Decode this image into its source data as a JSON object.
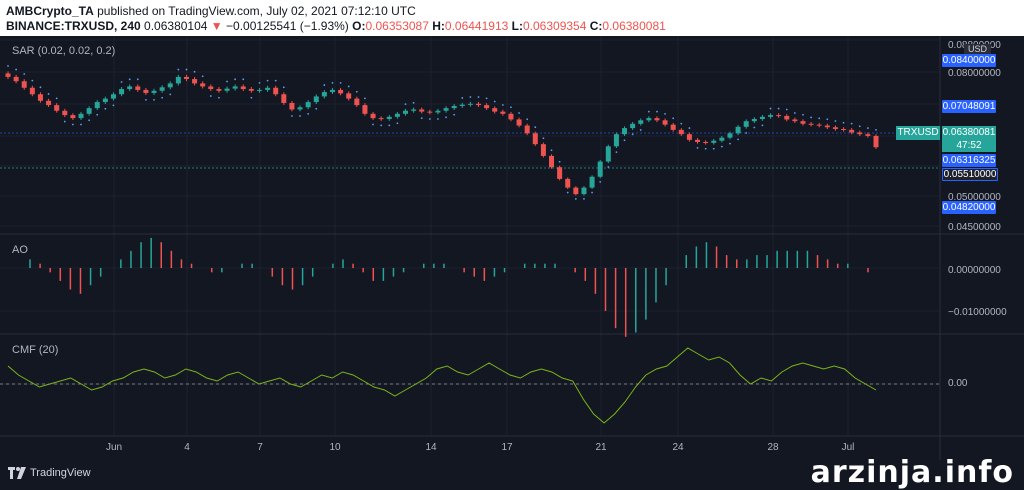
{
  "header": {
    "author": "AMBCrypto_TA",
    "published": "published on TradingView.com, July 02, 2021 07:12:10 UTC",
    "symbol": "BINANCE:TRXUSD, 240",
    "price": "0.06380104",
    "arrow": "▼",
    "change": "−0.00125541 (−1.93%)",
    "o_label": "O:",
    "o_value": "0.06353087",
    "h_label": "H:",
    "h_value": "0.06441913",
    "l_label": "L:",
    "l_value": "0.06309354",
    "c_label": "C:",
    "c_value": "0.06380081"
  },
  "panes": {
    "price_title": "SAR (0.02, 0.02, 0.2)",
    "ao_title": "AO",
    "cmf_title": "CMF (20)"
  },
  "price_axis": {
    "currency": "USD",
    "ticks": [
      "0.08800000",
      "0.08000000",
      "0.05000000",
      "0.04500000"
    ],
    "tags": {
      "t1": "0.08400000",
      "t2": "0.07048091",
      "t3": "0.06316325",
      "t4": "0.05510000",
      "t5": "0.04820000"
    },
    "symbol_tag": "TRXUSD",
    "last_price": "0.06380081",
    "countdown": "47:52"
  },
  "ao_axis": {
    "ticks": [
      "0.00000000",
      "−0.01000000"
    ]
  },
  "cmf_axis": {
    "ticks": [
      "0.00"
    ]
  },
  "time_axis": [
    "Jun",
    "4",
    "7",
    "10",
    "14",
    "17",
    "21",
    "24",
    "28",
    "Jul"
  ],
  "colors": {
    "up": "#26a69a",
    "down": "#ef5350",
    "sar": "#5b9cf6",
    "cmf": "#7cb518",
    "background": "#131722"
  },
  "footer": {
    "logo": "TradingView",
    "watermark": "arzinja.info"
  },
  "chart_data": {
    "type": "candlestick",
    "symbol": "TRXUSD",
    "interval": "240",
    "x_labels": [
      "Jun",
      "4",
      "7",
      "10",
      "14",
      "17",
      "21",
      "24",
      "28",
      "Jul"
    ],
    "ohlc_last": {
      "open": 0.06353087,
      "high": 0.06441913,
      "low": 0.06309354,
      "close": 0.06380081
    },
    "close_path": [
      0.08,
      0.079,
      0.0775,
      0.076,
      0.0745,
      0.0735,
      0.0722,
      0.0712,
      0.0705,
      0.0715,
      0.0728,
      0.0742,
      0.075,
      0.076,
      0.0772,
      0.0778,
      0.077,
      0.0763,
      0.0768,
      0.0776,
      0.0785,
      0.08,
      0.0795,
      0.0785,
      0.0778,
      0.0772,
      0.0768,
      0.0773,
      0.0778,
      0.0772,
      0.0768,
      0.077,
      0.0775,
      0.076,
      0.074,
      0.0725,
      0.073,
      0.0742,
      0.0755,
      0.0765,
      0.077,
      0.0762,
      0.075,
      0.0735,
      0.0715,
      0.0705,
      0.0703,
      0.0708,
      0.0715,
      0.0722,
      0.0725,
      0.072,
      0.0718,
      0.0722,
      0.0728,
      0.0733,
      0.0736,
      0.0738,
      0.0735,
      0.0728,
      0.072,
      0.0715,
      0.0702,
      0.0688,
      0.067,
      0.0645,
      0.0618,
      0.0592,
      0.0565,
      0.0545,
      0.053,
      0.0545,
      0.057,
      0.0605,
      0.064,
      0.0668,
      0.0682,
      0.0692,
      0.07,
      0.0705,
      0.07,
      0.069,
      0.0678,
      0.0668,
      0.0655,
      0.065,
      0.0648,
      0.0653,
      0.066,
      0.067,
      0.0685,
      0.0698,
      0.0703,
      0.0708,
      0.0712,
      0.071,
      0.0702,
      0.0698,
      0.0692,
      0.069,
      0.0688,
      0.0684,
      0.068,
      0.0678,
      0.0672,
      0.0668,
      0.0664,
      0.0638
    ],
    "ao_path": [
      0.002,
      0.001,
      -0.001,
      -0.003,
      -0.005,
      -0.006,
      -0.004,
      -0.002,
      0.0,
      0.002,
      0.004,
      0.006,
      0.007,
      0.006,
      0.004,
      0.002,
      0.001,
      0.0,
      -0.001,
      -0.001,
      0.0,
      0.001,
      0.001,
      0.0,
      -0.002,
      -0.004,
      -0.005,
      -0.004,
      -0.002,
      0.0,
      0.001,
      0.002,
      0.001,
      -0.001,
      -0.003,
      -0.003,
      -0.002,
      -0.001,
      0.0,
      0.001,
      0.001,
      0.001,
      0.0,
      -0.001,
      -0.002,
      -0.003,
      -0.002,
      -0.001,
      0.0,
      0.001,
      0.001,
      0.001,
      0.001,
      0.0,
      -0.001,
      -0.003,
      -0.006,
      -0.01,
      -0.014,
      -0.016,
      -0.015,
      -0.012,
      -0.008,
      -0.004,
      0.0,
      0.003,
      0.005,
      0.006,
      0.005,
      0.003,
      0.002,
      0.002,
      0.003,
      0.003,
      0.004,
      0.004,
      0.004,
      0.004,
      0.003,
      0.002,
      0.001,
      0.001,
      0.0,
      -0.001
    ],
    "cmf_path": [
      0.06,
      0.03,
      0.01,
      -0.01,
      0.0,
      0.01,
      0.02,
      0.0,
      -0.02,
      -0.01,
      0.01,
      0.02,
      0.04,
      0.05,
      0.04,
      0.02,
      0.03,
      0.05,
      0.04,
      0.02,
      0.01,
      0.03,
      0.04,
      0.02,
      0.0,
      0.01,
      0.02,
      0.0,
      -0.01,
      0.01,
      0.03,
      0.02,
      0.04,
      0.03,
      0.01,
      -0.01,
      -0.02,
      -0.04,
      -0.02,
      0.0,
      0.02,
      0.05,
      0.06,
      0.04,
      0.03,
      0.05,
      0.07,
      0.05,
      0.03,
      0.02,
      0.04,
      0.05,
      0.04,
      0.02,
      0.01,
      -0.05,
      -0.1,
      -0.13,
      -0.1,
      -0.06,
      -0.01,
      0.03,
      0.05,
      0.06,
      0.09,
      0.12,
      0.1,
      0.08,
      0.09,
      0.07,
      0.03,
      0.0,
      0.02,
      0.01,
      0.04,
      0.06,
      0.07,
      0.06,
      0.05,
      0.06,
      0.05,
      0.02,
      0.0,
      -0.02
    ]
  }
}
